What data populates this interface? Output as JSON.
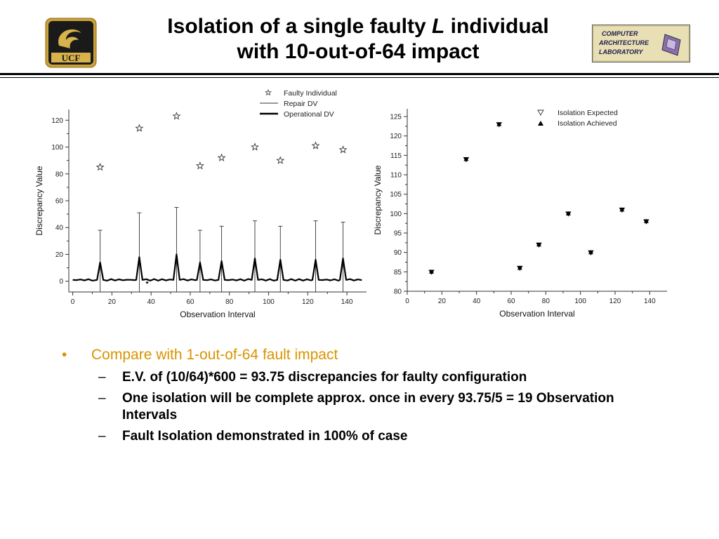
{
  "slide": {
    "title_line1_prefix": "Isolation of a single faulty ",
    "title_line1_italic": "L",
    "title_line1_suffix": " individual",
    "title_line2": "with 10-out-of-64 impact",
    "logo_left_text": "UCF",
    "logo_right_lines": [
      "COMPUTER",
      "ARCHITECTURE",
      "LABORATORY"
    ]
  },
  "bullets": {
    "main": "Compare with 1-out-of-64 fault impact",
    "subs": [
      "E.V. of (10/64)*600 = 93.75 discrepancies for faulty configuration",
      "One isolation will be complete approx. once in every 93.75/5 = 19 Observation Intervals",
      "Fault Isolation demonstrated in 100% of case"
    ]
  },
  "chart_data": [
    {
      "type": "line",
      "xlabel": "Observation Interval",
      "ylabel": "Discrepancy Value",
      "xlim": [
        -2,
        150
      ],
      "ylim": [
        -8,
        128
      ],
      "xticks": [
        0,
        20,
        40,
        60,
        80,
        100,
        120,
        140
      ],
      "yticks": [
        0,
        20,
        40,
        60,
        80,
        100,
        120
      ],
      "legend_position": "top-right",
      "series": [
        {
          "name": "Faulty Individual",
          "marker": "star",
          "x": [
            14,
            34,
            53,
            65,
            76,
            93,
            106,
            124,
            138
          ],
          "y": [
            85,
            114,
            123,
            86,
            92,
            100,
            90,
            101,
            98
          ]
        },
        {
          "name": "Repair DV",
          "style": "thin",
          "spikes": [
            {
              "x": 14,
              "top": 38
            },
            {
              "x": 34,
              "top": 51
            },
            {
              "x": 53,
              "top": 55
            },
            {
              "x": 65,
              "top": 38
            },
            {
              "x": 76,
              "top": 41
            },
            {
              "x": 93,
              "top": 45
            },
            {
              "x": 106,
              "top": 41
            },
            {
              "x": 124,
              "top": 45
            },
            {
              "x": 138,
              "top": 44
            }
          ]
        },
        {
          "name": "Operational DV",
          "style": "thick",
          "baseline": 1,
          "peaks": [
            {
              "x": 14,
              "y": 14
            },
            {
              "x": 34,
              "y": 18
            },
            {
              "x": 53,
              "y": 20
            },
            {
              "x": 65,
              "y": 14
            },
            {
              "x": 76,
              "y": 15
            },
            {
              "x": 93,
              "y": 17
            },
            {
              "x": 106,
              "y": 16
            },
            {
              "x": 124,
              "y": 16
            },
            {
              "x": 138,
              "y": 17
            }
          ]
        }
      ]
    },
    {
      "type": "scatter",
      "xlabel": "Observation Interval",
      "ylabel": "Discrepancy Value",
      "xlim": [
        0,
        150
      ],
      "ylim": [
        80,
        127
      ],
      "xticks": [
        0,
        20,
        40,
        60,
        80,
        100,
        120,
        140
      ],
      "yticks": [
        80,
        85,
        90,
        95,
        100,
        105,
        110,
        115,
        120,
        125
      ],
      "legend_position": "top-right",
      "series": [
        {
          "name": "Isolation Expected",
          "marker": "triangle-down-open",
          "x": [
            14,
            34,
            53,
            65,
            76,
            93,
            106,
            124,
            138
          ],
          "y": [
            85,
            114,
            123,
            86,
            92,
            100,
            90,
            101,
            98
          ]
        },
        {
          "name": "Isolation Achieved",
          "marker": "triangle-up-filled",
          "x": [
            14,
            34,
            53,
            65,
            76,
            93,
            106,
            124,
            138
          ],
          "y": [
            85,
            114,
            123,
            86,
            92,
            100,
            90,
            101,
            98
          ]
        }
      ]
    }
  ]
}
